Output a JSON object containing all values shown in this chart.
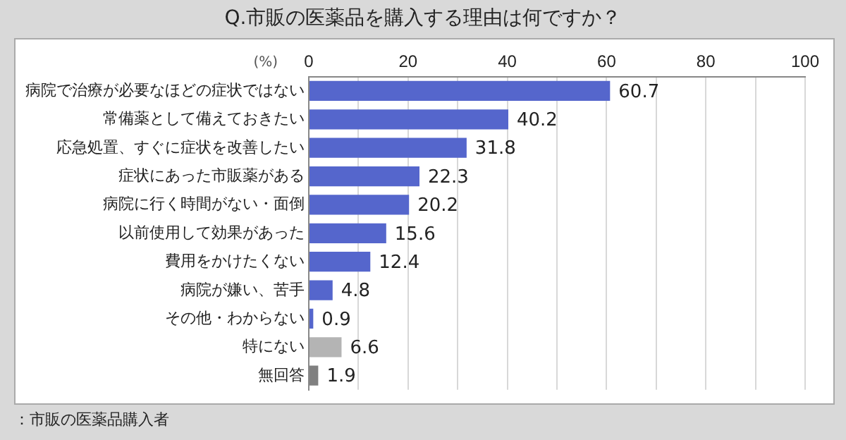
{
  "chart_data": {
    "type": "bar",
    "orientation": "horizontal",
    "title": "Q.市販の医薬品を購入する理由は何ですか？",
    "xlabel": "(%)",
    "categories": [
      "病院で治療が必要なほどの症状ではない",
      "常備薬として備えておきたい",
      "応急処置、すぐに症状を改善したい",
      "症状にあった市販薬がある",
      "病院に行く時間がない・面倒",
      "以前使用して効果があった",
      "費用をかけたくない",
      "病院が嫌い、苦手",
      "その他・わからない",
      "特にない",
      "無回答"
    ],
    "values": [
      60.7,
      40.2,
      31.8,
      22.3,
      20.2,
      15.6,
      12.4,
      4.8,
      0.9,
      6.6,
      1.9
    ],
    "colors": [
      "#5566cc",
      "#5566cc",
      "#5566cc",
      "#5566cc",
      "#5566cc",
      "#5566cc",
      "#5566cc",
      "#5566cc",
      "#5566cc",
      "#b4b4b4",
      "#808080"
    ],
    "xlim": [
      0,
      100
    ],
    "xticks": [
      0,
      {
        "value": 10,
        "label": null
      },
      20,
      {
        "value": 30,
        "label": null
      },
      40,
      {
        "value": 50,
        "label": null
      },
      60,
      {
        "value": 70,
        "label": null
      },
      80,
      {
        "value": 90,
        "label": null
      },
      100
    ],
    "grid": "x",
    "data_labels": true,
    "legend": false,
    "annotations": [
      "：市販の医薬品購入者"
    ]
  }
}
